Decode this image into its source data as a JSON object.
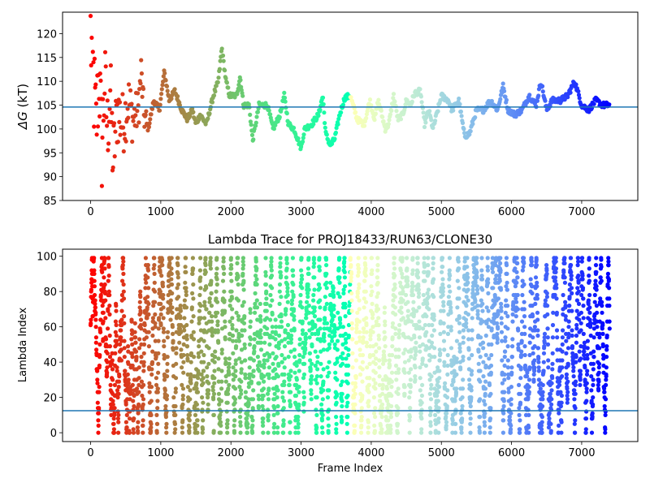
{
  "chart_data": [
    {
      "type": "scatter",
      "title": "",
      "xlabel": "",
      "ylabel_symbol": "ΔG",
      "ylabel_unit": " (kT)",
      "xlim": [
        -400,
        7800
      ],
      "ylim": [
        85,
        124.5
      ],
      "xticks": [
        0,
        1000,
        2000,
        3000,
        4000,
        5000,
        6000,
        7000
      ],
      "yticks": [
        85,
        90,
        95,
        100,
        105,
        110,
        115,
        120
      ],
      "reference_line": 104.6,
      "reference_line_color": "#1f77b4",
      "colormap": "rainbow (frame index high = violet, low = red)",
      "n_frames": 7400,
      "trace_keyframes": [
        [
          0,
          120
        ],
        [
          40,
          110
        ],
        [
          80,
          100
        ],
        [
          120,
          112
        ],
        [
          160,
          96
        ],
        [
          200,
          110
        ],
        [
          240,
          100
        ],
        [
          280,
          108
        ],
        [
          320,
          93
        ],
        [
          380,
          104
        ],
        [
          460,
          101
        ],
        [
          540,
          106
        ],
        [
          600,
          102
        ],
        [
          680,
          104
        ],
        [
          720,
          112
        ],
        [
          760,
          103
        ],
        [
          820,
          100
        ],
        [
          900,
          106
        ],
        [
          980,
          104
        ],
        [
          1050,
          112
        ],
        [
          1120,
          106
        ],
        [
          1200,
          108
        ],
        [
          1300,
          104
        ],
        [
          1380,
          102
        ],
        [
          1450,
          104
        ],
        [
          1500,
          101
        ],
        [
          1560,
          103
        ],
        [
          1650,
          101
        ],
        [
          1750,
          107
        ],
        [
          1820,
          110
        ],
        [
          1870,
          117
        ],
        [
          1930,
          110
        ],
        [
          1980,
          107
        ],
        [
          2080,
          107
        ],
        [
          2130,
          111
        ],
        [
          2180,
          105
        ],
        [
          2260,
          105
        ],
        [
          2310,
          97.5
        ],
        [
          2400,
          105
        ],
        [
          2520,
          105
        ],
        [
          2600,
          100
        ],
        [
          2700,
          103
        ],
        [
          2760,
          107
        ],
        [
          2820,
          101
        ],
        [
          2900,
          100
        ],
        [
          3000,
          96
        ],
        [
          3050,
          100
        ],
        [
          3150,
          101
        ],
        [
          3250,
          103
        ],
        [
          3310,
          107
        ],
        [
          3350,
          99
        ],
        [
          3420,
          96.5
        ],
        [
          3480,
          98
        ],
        [
          3550,
          103
        ],
        [
          3620,
          106.5
        ],
        [
          3700,
          107
        ],
        [
          3800,
          102
        ],
        [
          3900,
          101
        ],
        [
          3980,
          106
        ],
        [
          4050,
          102
        ],
        [
          4100,
          106
        ],
        [
          4200,
          100
        ],
        [
          4250,
          101
        ],
        [
          4320,
          107
        ],
        [
          4380,
          102
        ],
        [
          4450,
          103
        ],
        [
          4500,
          106
        ],
        [
          4560,
          105
        ],
        [
          4620,
          107.5
        ],
        [
          4700,
          108
        ],
        [
          4760,
          101
        ],
        [
          4820,
          104
        ],
        [
          4880,
          100
        ],
        [
          4950,
          104
        ],
        [
          5000,
          107
        ],
        [
          5100,
          106
        ],
        [
          5150,
          104
        ],
        [
          5250,
          106
        ],
        [
          5330,
          98.5
        ],
        [
          5400,
          99
        ],
        [
          5500,
          104
        ],
        [
          5600,
          104
        ],
        [
          5700,
          106
        ],
        [
          5800,
          104
        ],
        [
          5880,
          109
        ],
        [
          5950,
          104
        ],
        [
          6050,
          103
        ],
        [
          6150,
          104
        ],
        [
          6250,
          107
        ],
        [
          6350,
          105
        ],
        [
          6420,
          110
        ],
        [
          6500,
          104
        ],
        [
          6580,
          106
        ],
        [
          6700,
          106
        ],
        [
          6800,
          107
        ],
        [
          6900,
          110
        ],
        [
          7000,
          105
        ],
        [
          7100,
          104
        ],
        [
          7200,
          106
        ],
        [
          7300,
          105
        ],
        [
          7400,
          105
        ]
      ]
    },
    {
      "type": "scatter",
      "title": "Lambda Trace for PROJ18433/RUN63/CLONE30",
      "xlabel": "Frame Index",
      "ylabel": "Lambda Index",
      "xlim": [
        -400,
        7800
      ],
      "ylim": [
        -5,
        104
      ],
      "xticks": [
        0,
        1000,
        2000,
        3000,
        4000,
        5000,
        6000,
        7000
      ],
      "yticks": [
        0,
        20,
        40,
        60,
        80,
        100
      ],
      "reference_line": 12.5,
      "reference_line_color": "#1f77b4",
      "colormap": "rainbow (frame index high = violet, low = red)",
      "n_frames": 7400,
      "lambda_range": [
        0,
        99
      ]
    }
  ]
}
